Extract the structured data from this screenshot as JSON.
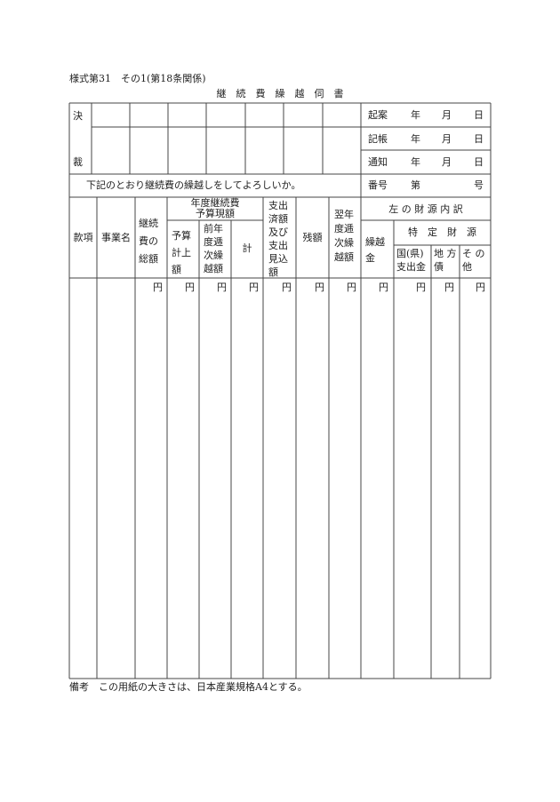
{
  "form_id": "様式第31　その1(第18条関係)",
  "title": "継　続　費　繰　越　伺　書",
  "approval": {
    "label_top": "決",
    "label_bottom": "裁"
  },
  "dates": [
    {
      "label": "起案",
      "year": "年",
      "month": "月",
      "day": "日"
    },
    {
      "label": "記帳",
      "year": "年",
      "month": "月",
      "day": "日"
    },
    {
      "label": "通知",
      "year": "年",
      "month": "月",
      "day": "日"
    }
  ],
  "request_text": "下記のとおり継続費の繰越しをしてよろしいか。",
  "number": {
    "label": "番号",
    "prefix": "第",
    "suffix": "号"
  },
  "table": {
    "headers": {
      "kanko": "款項",
      "jigyo": "事業名",
      "total": "継続\n費の\n総額",
      "budget_group": "年度継続費\n予算現額",
      "budget_listed": "予算\n計上\n額",
      "prev_carry": "前年\n度逓\n次繰\n越額",
      "sum": "計",
      "spent": "支出\n済額\n及び\n支出\n見込\n額",
      "remain": "残額",
      "next_carry": "翌年\n度逓\n次繰\n越額",
      "source_group": "左 の 財 源 内 訳",
      "carry_fund": "繰越\n金",
      "specific_group": "特　定　財　源",
      "national": "国(県)\n支出金",
      "local_bond": "地 方\n債",
      "other": "そ の\n他"
    },
    "unit": "円"
  },
  "footnote": "備考　この用紙の大きさは、日本産業規格A4とする。"
}
